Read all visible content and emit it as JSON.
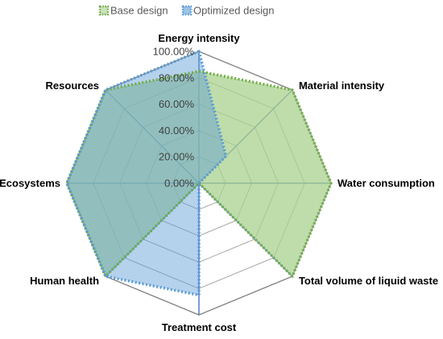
{
  "chart_data": {
    "type": "radar",
    "axes": [
      "Energy intensity",
      "Material intensity",
      "Water consumption",
      "Total volume of liquid waste",
      "Treatment cost",
      "Human health",
      "Ecosystems",
      "Resources"
    ],
    "tick_labels": [
      "0.00%",
      "20.00%",
      "40.00%",
      "60.00%",
      "80.00%",
      "100.00%"
    ],
    "rlim": [
      0,
      1
    ],
    "series": [
      {
        "name": "Base design",
        "color": "#70ad47",
        "fill": "#a9d18e",
        "values": [
          0.85,
          1.0,
          1.0,
          1.0,
          0.0,
          1.0,
          1.0,
          1.0
        ]
      },
      {
        "name": "Optimized design",
        "color": "#5b9bd5",
        "fill": "#5b9bd5",
        "values": [
          1.0,
          0.29,
          0.0,
          0.0,
          0.85,
          1.0,
          1.0,
          1.0
        ]
      }
    ],
    "legend_position": "top"
  }
}
